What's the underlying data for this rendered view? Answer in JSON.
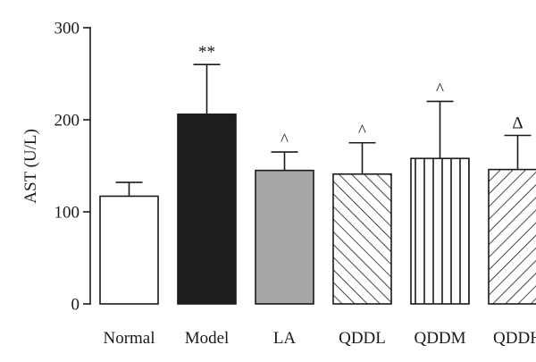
{
  "chart_data": {
    "type": "bar",
    "categories": [
      "Normal",
      "Model",
      "LA",
      "QDDL",
      "QDDM",
      "QDDH"
    ],
    "values": [
      117,
      206,
      145,
      141,
      158,
      146
    ],
    "error_plus": [
      15,
      54,
      20,
      34,
      62,
      37
    ],
    "annotations": [
      "",
      "**",
      "^",
      "^",
      "^",
      "Δ"
    ],
    "fill_styles": [
      "white",
      "solid-black",
      "solid-gray",
      "hatch-backslash",
      "vertical-lines",
      "hatch-slash"
    ],
    "fill_colors": {
      "white": "#ffffff",
      "black": "#1e1e1e",
      "gray": "#a6a6a6",
      "stroke": "#1a1a1a"
    },
    "ylabel": "AST (U/L)",
    "xlabel": "",
    "ylim": [
      0,
      300
    ],
    "yticks": [
      0,
      100,
      200,
      300
    ],
    "grid": false
  }
}
